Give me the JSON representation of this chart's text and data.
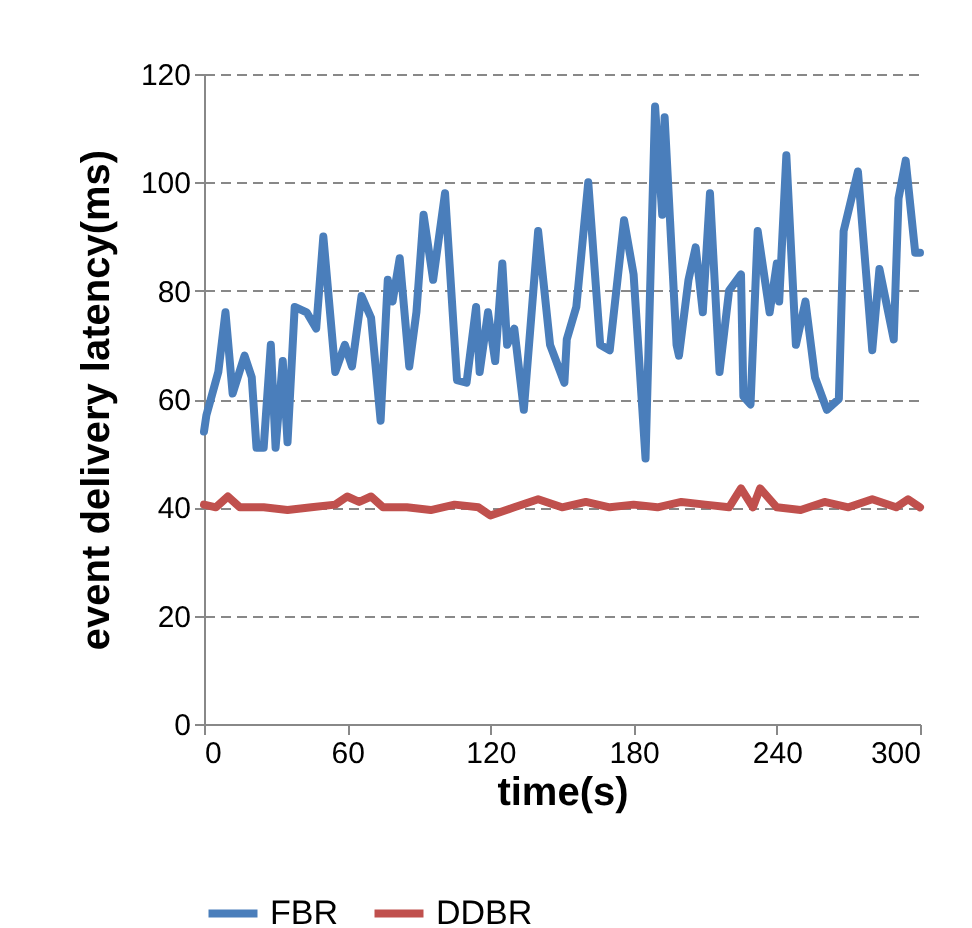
{
  "chart_data": {
    "type": "line",
    "xlabel": "time(s)",
    "ylabel": "event delivery latency(ms)",
    "xlim": [
      0,
      300
    ],
    "xticks": [
      0,
      60,
      120,
      180,
      240,
      300
    ],
    "ylim": [
      0,
      120
    ],
    "yticks": [
      0,
      20,
      40,
      60,
      80,
      100,
      120
    ],
    "grid": "y",
    "legend": "bottom",
    "marker": "none",
    "line_style": "solid",
    "series": [
      {
        "name": "FBR",
        "color": "#4a7ebb",
        "x": [
          0,
          1,
          6,
          9,
          12,
          17,
          20,
          22,
          25,
          28,
          30,
          33,
          35,
          38,
          43,
          47,
          50,
          55,
          59,
          62,
          66,
          70,
          74,
          77,
          79,
          82,
          86,
          89,
          92,
          96,
          101,
          106,
          110,
          114,
          115.5,
          119,
          122,
          125,
          127,
          130,
          134,
          140,
          145,
          151,
          152,
          156,
          161,
          166,
          170,
          176,
          180,
          185,
          189,
          192,
          193,
          198,
          199,
          203,
          206,
          209,
          212,
          216,
          220,
          225,
          226,
          229,
          232,
          237,
          240,
          241,
          244,
          248,
          252,
          256,
          261,
          266,
          268,
          274,
          280,
          283,
          289,
          291,
          294,
          298,
          300
        ],
        "values": [
          54,
          57,
          65,
          76,
          61,
          68,
          64,
          51,
          51,
          70,
          51,
          67,
          52,
          77,
          76,
          73,
          90,
          65,
          70,
          66,
          79,
          75,
          56,
          82,
          78,
          86,
          66,
          76,
          94,
          82,
          98,
          63.5,
          63,
          77,
          65,
          76,
          67,
          85,
          70,
          73,
          58,
          91,
          70,
          63,
          71,
          77,
          100,
          70,
          69,
          93,
          83,
          49,
          114,
          94,
          112,
          70,
          68,
          82,
          88,
          76,
          98,
          65,
          80,
          83,
          60.5,
          59,
          91,
          76,
          85,
          78,
          105,
          70,
          78,
          64,
          58,
          60,
          91,
          102,
          69,
          84,
          71,
          97,
          104,
          87,
          87
        ]
      },
      {
        "name": "DDBR",
        "color": "#c0504d",
        "x": [
          0,
          5,
          10,
          15,
          25,
          35,
          45,
          55,
          60,
          65,
          70,
          75,
          85,
          95,
          105,
          115,
          120,
          130,
          140,
          150,
          160,
          170,
          180,
          190,
          200,
          210,
          220,
          225,
          230,
          233,
          240,
          250,
          260,
          270,
          280,
          290,
          295,
          300
        ],
        "values": [
          40.5,
          40,
          42,
          40,
          40,
          39.5,
          40,
          40.5,
          42,
          41,
          42,
          40,
          40,
          39.5,
          40.5,
          40,
          38.5,
          40,
          41.5,
          40,
          41,
          40,
          40.5,
          40,
          41,
          40.5,
          40,
          43.5,
          40,
          43.5,
          40,
          39.5,
          41,
          40,
          41.5,
          40,
          41.5,
          40
        ]
      }
    ]
  }
}
